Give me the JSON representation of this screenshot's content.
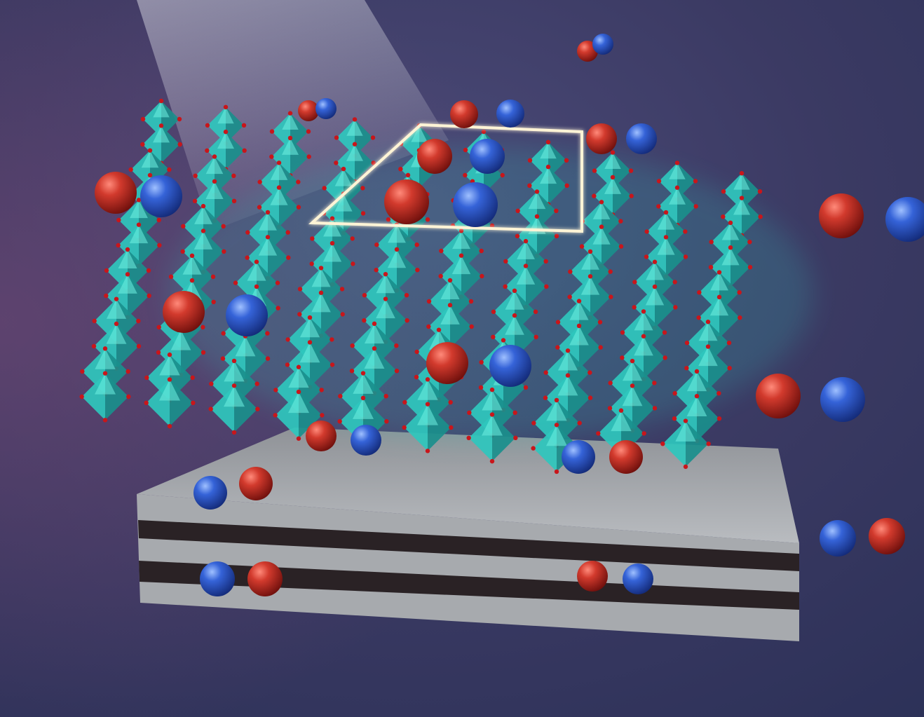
{
  "palette": {
    "background_top": "#3b3a63",
    "background_bottom": "#2f3560",
    "background_glow": "#6a4a78",
    "octahedron_face": "#2fc7bd",
    "octahedron_dark": "#1a8f8c",
    "octahedron_light": "#6ff0e2",
    "oxygen_atom": "#c8161b",
    "molecule_red": "#c9342a",
    "molecule_blue": "#2f5ad0",
    "bond_glow": "#fff6d8",
    "substrate_top": "#b3b6ba",
    "substrate_side": "#9ea1a5",
    "substrate_stripe": "#2a2225",
    "light_beam": "#c9c9d4"
  },
  "scene": {
    "subject": "crystal-lattice-octahedra-on-layered-substrate",
    "molecule_count": 16,
    "lattice_columns": 10,
    "lattice_rows": 12
  },
  "icons": [
    "octahedron-icon",
    "diatomic-molecule-icon",
    "unit-cell-outline-icon"
  ]
}
